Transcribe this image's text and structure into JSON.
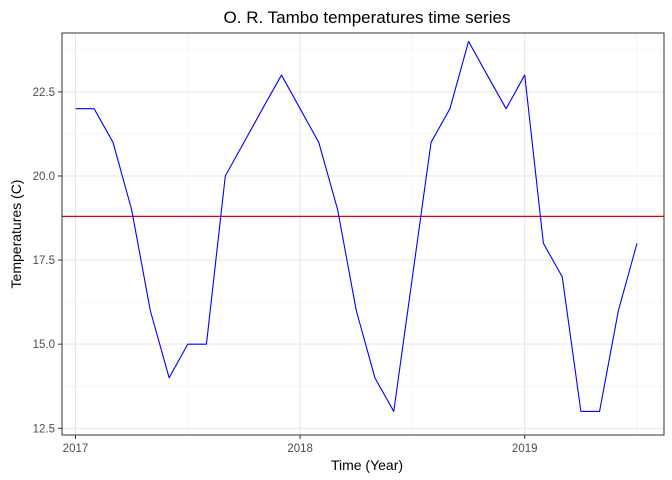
{
  "chart_data": {
    "type": "line",
    "title": "O. R. Tambo temperatures time series",
    "xlabel": "Time (Year)",
    "ylabel": "Temperatures (C)",
    "x_ticks": [
      2017,
      2018,
      2019
    ],
    "x_tick_labels": [
      "2017",
      "2018",
      "2019"
    ],
    "y_ticks": [
      12.5,
      15.0,
      17.5,
      20.0,
      22.5
    ],
    "y_tick_labels": [
      "12.5",
      "15.0",
      "17.5",
      "20.0",
      "22.5"
    ],
    "xlim": [
      2016.94,
      2019.62
    ],
    "ylim": [
      12.3,
      24.25
    ],
    "grid": true,
    "legend": "none",
    "series": [
      {
        "color": "#0000ff",
        "x": [
          2017.0,
          2017.083,
          2017.167,
          2017.25,
          2017.333,
          2017.417,
          2017.5,
          2017.583,
          2017.667,
          2017.75,
          2017.833,
          2017.917,
          2018.0,
          2018.083,
          2018.167,
          2018.25,
          2018.333,
          2018.417,
          2018.5,
          2018.583,
          2018.667,
          2018.75,
          2018.833,
          2018.917,
          2019.0,
          2019.083,
          2019.167,
          2019.25,
          2019.333,
          2019.417,
          2019.5
        ],
        "y": [
          22,
          22,
          21,
          19,
          16,
          14,
          15,
          15,
          20,
          21,
          22,
          23,
          22,
          21,
          19,
          16,
          14,
          13,
          17,
          21,
          22,
          24,
          23,
          22,
          23,
          18,
          17,
          13,
          13,
          16,
          18
        ]
      }
    ],
    "reference_lines": [
      {
        "orientation": "horizontal",
        "y": 18.8,
        "color": "#dd0000"
      }
    ]
  }
}
